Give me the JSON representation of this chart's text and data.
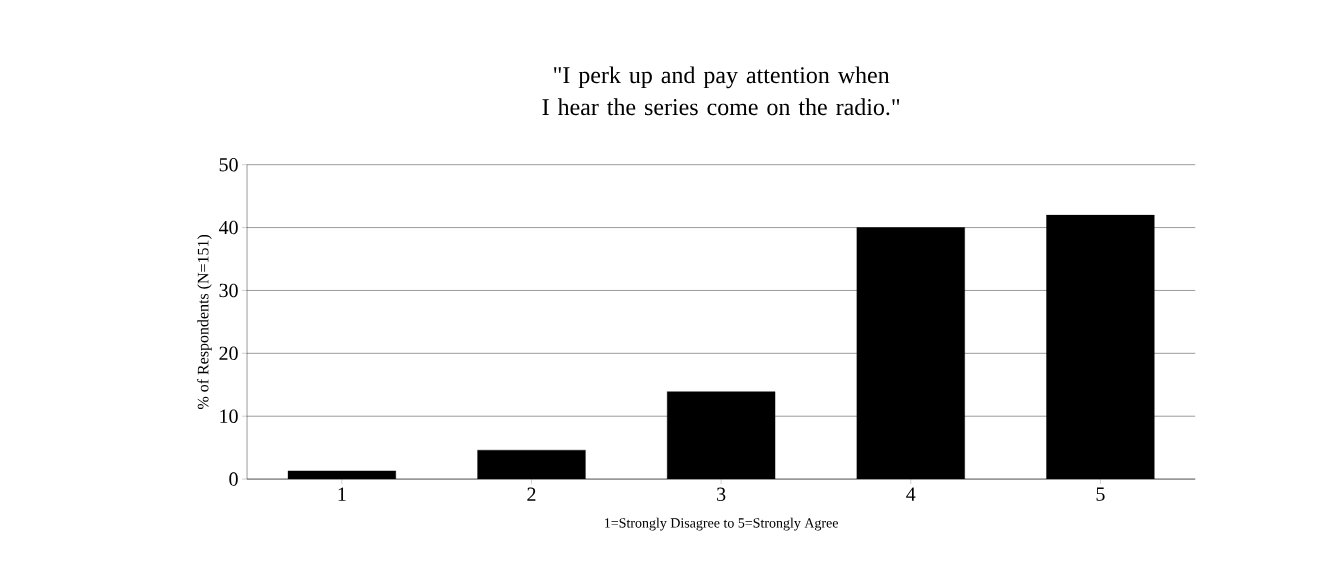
{
  "chart_data": {
    "type": "bar",
    "title": "\"I perk up and pay attention when\nI hear the series come on the radio.\"",
    "xlabel": "1=Strongly Disagree to 5=Strongly Agree",
    "ylabel": "% of Respondents (N=151)",
    "categories": [
      "1",
      "2",
      "3",
      "4",
      "5"
    ],
    "values": [
      1.3,
      4.6,
      13.9,
      40,
      42
    ],
    "color": "#000000",
    "ylim": [
      0,
      50
    ],
    "yticks": [
      0,
      10,
      20,
      30,
      40,
      50
    ],
    "grid": "y"
  }
}
